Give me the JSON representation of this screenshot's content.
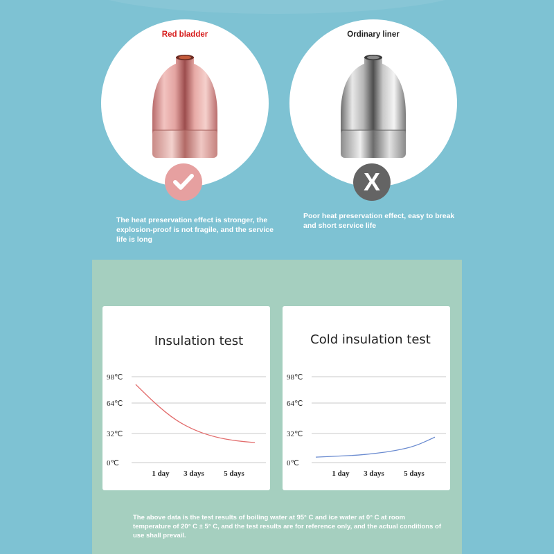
{
  "comparison": {
    "left": {
      "title": "Red bladder",
      "badge_icon": "check-icon",
      "description": "The heat preservation effect is stronger, the explosion-proof is not fragile, and the service life is long",
      "color": "#d61a1a"
    },
    "right": {
      "title": "Ordinary liner",
      "badge_icon": "x-icon",
      "badge_text": "X",
      "description": "Poor heat preservation effect, easy to break and short service life"
    }
  },
  "charts": {
    "insulation": {
      "title": "Insulation test"
    },
    "cold": {
      "title": "Cold insulation test"
    }
  },
  "chart_data": [
    {
      "type": "line",
      "title": "Insulation test",
      "y_ticks": [
        "98℃",
        "64℃",
        "32℃",
        "0℃"
      ],
      "x_ticks": [
        "1 day",
        "3 days",
        "5 days"
      ],
      "ylim": [
        0,
        98
      ],
      "series": [
        {
          "color": "#e26b6b",
          "points": [
            [
              0,
              88
            ],
            [
              1,
              63
            ],
            [
              2,
              46
            ],
            [
              3,
              35
            ],
            [
              4,
              28
            ],
            [
              5,
              24
            ],
            [
              6,
              22
            ]
          ]
        }
      ]
    },
    {
      "type": "line",
      "title": "Cold insulation test",
      "y_ticks": [
        "98℃",
        "64℃",
        "32℃",
        "0℃"
      ],
      "x_ticks": [
        "1 day",
        "3 days",
        "5 days"
      ],
      "ylim": [
        0,
        98
      ],
      "series": [
        {
          "color": "#6a8bd0",
          "points": [
            [
              0,
              6
            ],
            [
              1,
              7
            ],
            [
              2,
              8
            ],
            [
              3,
              10
            ],
            [
              4,
              13
            ],
            [
              5,
              18
            ],
            [
              6,
              28
            ]
          ]
        }
      ]
    }
  ],
  "footnote": "The above data is the test results of boiling water at 95° C and ice water at 0° C at room temperature of 20° C ± 5° C, and the test results are for reference only, and the actual conditions of use shall prevail."
}
